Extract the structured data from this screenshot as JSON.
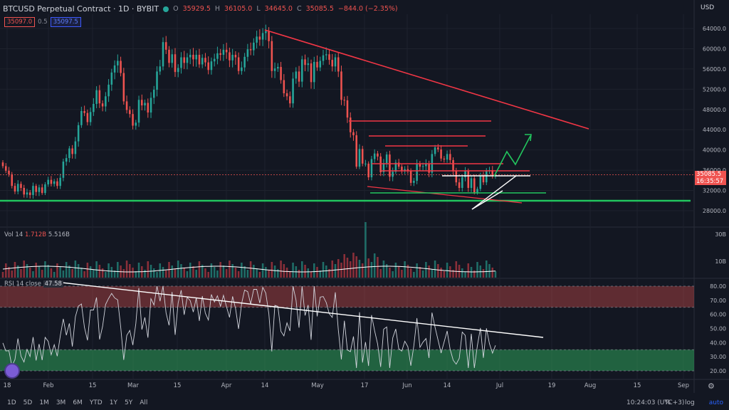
{
  "header": {
    "symbol": "BTCUSD Perpetual Contract · 1D · BYBIT",
    "o_label": "O",
    "o": "35929.5",
    "h_label": "H",
    "h": "36105.0",
    "l_label": "L",
    "l": "34645.0",
    "c_label": "C",
    "c": "35085.5",
    "change": "−844.0 (−2.35%)"
  },
  "order_box": {
    "sell": "35097.0",
    "spread": "0.5",
    "buy": "35097.5"
  },
  "currency": "USD",
  "last_price_badge": {
    "price": "35085.5",
    "countdown": "16:35:57"
  },
  "volume_label": {
    "name": "Vol 14",
    "v1": "1.712B",
    "v2": "5.516B"
  },
  "rsi_label": {
    "name": "RSI 14 close",
    "value": "47.58"
  },
  "bottom_toolbar": {
    "ranges": [
      "1D",
      "5D",
      "1M",
      "3M",
      "6M",
      "YTD",
      "1Y",
      "5Y",
      "All"
    ],
    "clock": "10:24:03 (UTC+3)",
    "percent": "%",
    "log": "log",
    "auto": "auto"
  },
  "colors": {
    "up": "#26a69a",
    "down": "#ef5350",
    "background": "#131722",
    "trend": "#f23645",
    "support": "#22c55e"
  },
  "chart_data": {
    "type": "candlestick",
    "title": "BTCUSD Perpetual Contract, 1D, BYBIT",
    "price_axis_ticks": [
      28000,
      32000,
      36000,
      40000,
      44000,
      48000,
      52000,
      56000,
      60000,
      64000
    ],
    "price_axis_labels": [
      "28000.0",
      "32000.0",
      "36000.0",
      "40000.0",
      "44000.0",
      "48000.0",
      "52000.0",
      "56000.0",
      "60000.0",
      "64000.0"
    ],
    "x_ticks": [
      "18",
      "Feb",
      "15",
      "Mar",
      "15",
      "Apr",
      "14",
      "May",
      "17",
      "Jun",
      "14",
      "Jul",
      "19",
      "Aug",
      "15",
      "Sep"
    ],
    "ylim": [
      26000,
      67000
    ],
    "close": [
      36800,
      35900,
      35200,
      32900,
      31800,
      33300,
      32500,
      31200,
      31600,
      31100,
      32900,
      31700,
      32600,
      31500,
      33200,
      34100,
      33300,
      33800,
      32900,
      34500,
      37700,
      38400,
      40300,
      39200,
      41700,
      44900,
      47700,
      47300,
      45500,
      47500,
      49100,
      51800,
      49200,
      48600,
      50600,
      52900,
      55300,
      56700,
      57600,
      55200,
      49600,
      47900,
      47100,
      44800,
      45400,
      49900,
      48800,
      49300,
      47400,
      50300,
      51900,
      55500,
      56500,
      61300,
      59800,
      57200,
      58900,
      55400,
      56200,
      58300,
      57200,
      58300,
      58800,
      57900,
      58800,
      56900,
      58200,
      57300,
      55800,
      57500,
      58000,
      59100,
      58800,
      59800,
      59300,
      57700,
      58800,
      58300,
      55600,
      56300,
      58400,
      59900,
      59700,
      61200,
      62400,
      61800,
      63100,
      63500,
      61500,
      55600,
      56100,
      56400,
      53800,
      51200,
      50600,
      49200,
      54100,
      55500,
      53500,
      57900,
      56800,
      57100,
      53400,
      57400,
      56300,
      57600,
      58700,
      58900,
      57800,
      56500,
      58300,
      55500,
      49900,
      49800,
      46400,
      43500,
      42900,
      36700,
      40200,
      37300,
      37300,
      34600,
      38200,
      39300,
      38700,
      35600,
      37400,
      39100,
      34700,
      35700,
      37500,
      36700,
      35800,
      36200,
      35900,
      33500,
      33900,
      37300,
      36700,
      36800,
      37300,
      35500,
      39200,
      40500,
      40100,
      38300,
      38100,
      39200,
      38000,
      35800,
      33600,
      32500,
      34600,
      35900,
      32500,
      34400,
      31600,
      32300,
      34900,
      33600,
      35900,
      36000,
      35000,
      35085
    ]
  }
}
